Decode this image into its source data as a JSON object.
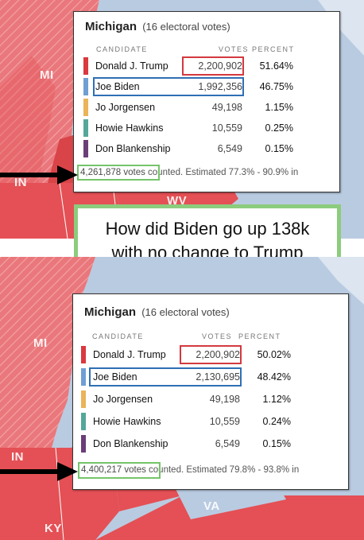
{
  "callout": {
    "line1": "How did Biden go up 138k",
    "line2": "with no change to Trump"
  },
  "map_labels": {
    "mi": "MI",
    "in": "IN",
    "wv": "WV",
    "va": "VA",
    "ky": "KY"
  },
  "header": {
    "candidate": "CANDIDATE",
    "votes": "VOTES",
    "percent": "PERCENT"
  },
  "colors": {
    "trump": "#d9393f",
    "biden": "#6f9fd3",
    "jorgensen": "#eab45a",
    "hawkins": "#54a79a",
    "blankenship": "#6b3e78",
    "map_red": "#e45055",
    "map_blue": "#b9cbe1",
    "highlight_green": "#75c46a"
  },
  "top": {
    "state": "Michigan",
    "electoral": "(16 electoral votes)",
    "rows": [
      {
        "name": "Donald J. Trump",
        "votes": "2,200,902",
        "percent": "51.64%"
      },
      {
        "name": "Joe Biden",
        "votes": "1,992,356",
        "percent": "46.75%"
      },
      {
        "name": "Jo Jorgensen",
        "votes": "49,198",
        "percent": "1.15%"
      },
      {
        "name": "Howie Hawkins",
        "votes": "10,559",
        "percent": "0.25%"
      },
      {
        "name": "Don Blankenship",
        "votes": "6,549",
        "percent": "0.15%"
      }
    ],
    "total_votes": "4,261,878 votes",
    "counted": " counted. Estimated 77.3% - 90.9% in"
  },
  "bottom": {
    "state": "Michigan",
    "electoral": "(16 electoral votes)",
    "rows": [
      {
        "name": "Donald J. Trump",
        "votes": "2,200,902",
        "percent": "50.02%"
      },
      {
        "name": "Joe Biden",
        "votes": "2,130,695",
        "percent": "48.42%"
      },
      {
        "name": "Jo Jorgensen",
        "votes": "49,198",
        "percent": "1.12%"
      },
      {
        "name": "Howie Hawkins",
        "votes": "10,559",
        "percent": "0.24%"
      },
      {
        "name": "Don Blankenship",
        "votes": "6,549",
        "percent": "0.15%"
      }
    ],
    "total_votes": "4,400,217 votes",
    "counted": " counted. Estimated 79.8% - 93.8% in"
  }
}
